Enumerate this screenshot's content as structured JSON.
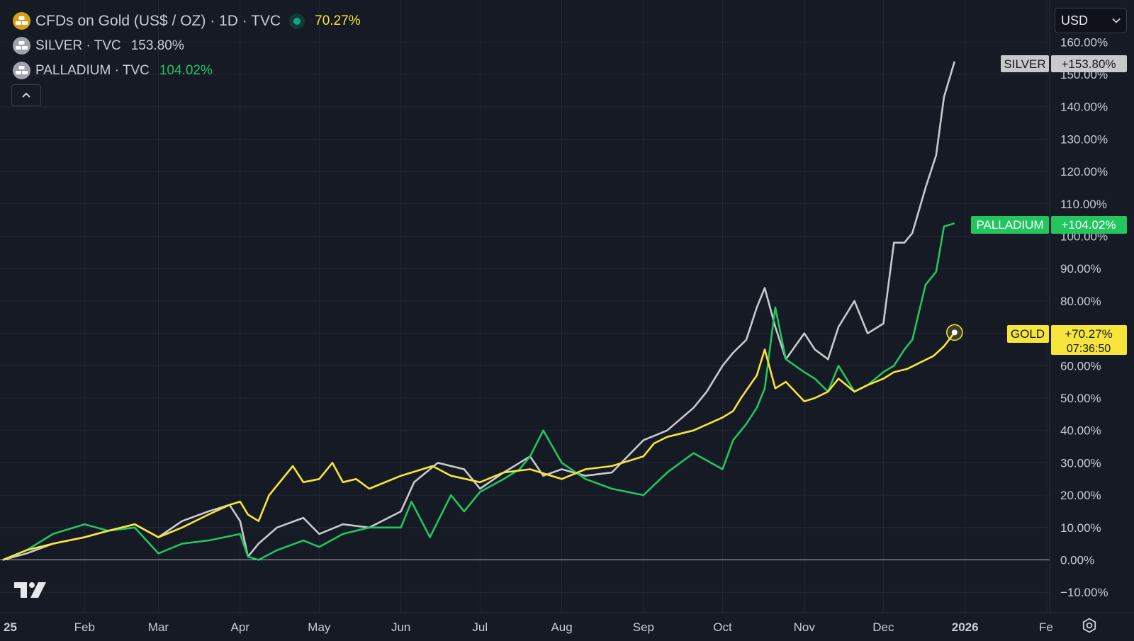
{
  "legend": {
    "main": {
      "title": "CFDs on Gold (US$ / OZ) · 1D · TVC",
      "value": "70.27%",
      "icon": "gold-bars-icon"
    },
    "series2": {
      "title": "SILVER · TVC",
      "value": "153.80%",
      "icon": "silver-bars-icon"
    },
    "series3": {
      "title": "PALLADIUM · TVC",
      "value": "104.02%",
      "icon": "palladium-bars-icon"
    },
    "collapse_icon": "chevron-up-icon"
  },
  "currency_select": {
    "value": "USD",
    "icon": "chevron-down-icon"
  },
  "colors": {
    "background": "#161a25",
    "grid": "#232735",
    "gold": "#f7e53b",
    "silver": "#c8c9cd",
    "palladium": "#22c55e",
    "axis_text": "#c9ccd3"
  },
  "price_labels": {
    "silver": {
      "name": "SILVER",
      "value": "+153.80%"
    },
    "palladium": {
      "name": "PALLADIUM",
      "value": "+104.02%"
    },
    "gold": {
      "name": "GOLD",
      "value": "+70.27%",
      "countdown": "07:36:50"
    }
  },
  "chart_data": {
    "type": "line",
    "y_unit": "percent change",
    "ylim": [
      -13,
      163
    ],
    "y_ticks": [
      -10,
      0,
      10,
      20,
      30,
      40,
      50,
      60,
      70,
      80,
      90,
      100,
      110,
      120,
      130,
      140,
      150,
      160
    ],
    "y_tick_labels": [
      "−10.00%",
      "0.00%",
      "10.00%",
      "20.00%",
      "30.00%",
      "40.00%",
      "50.00%",
      "60.00%",
      "70.00%",
      "80.00%",
      "90.00%",
      "100.00%",
      "110.00%",
      "120.00%",
      "130.00%",
      "140.00%",
      "150.00%",
      "160.00%"
    ],
    "x_tick_labels": [
      "25",
      "Feb",
      "Mar",
      "Apr",
      "May",
      "Jun",
      "Jul",
      "Aug",
      "Sep",
      "Oct",
      "Nov",
      "Dec",
      "2026",
      "Fe"
    ],
    "x_tick_bold": [
      true,
      false,
      false,
      false,
      false,
      false,
      false,
      false,
      false,
      false,
      false,
      false,
      true,
      false
    ],
    "x_tick_dates": [
      "2025-01-01",
      "2025-02-01",
      "2025-03-01",
      "2025-04-01",
      "2025-05-01",
      "2025-06-01",
      "2025-07-01",
      "2025-08-01",
      "2025-09-01",
      "2025-10-01",
      "2025-11-01",
      "2025-12-01",
      "2026-01-01",
      "2026-02-01"
    ],
    "grid": true,
    "series": [
      {
        "name": "SILVER",
        "color": "#c8c9cd",
        "x": [
          "2025-01-01",
          "2025-01-10",
          "2025-01-20",
          "2025-02-01",
          "2025-02-10",
          "2025-02-20",
          "2025-03-01",
          "2025-03-10",
          "2025-03-20",
          "2025-03-28",
          "2025-04-01",
          "2025-04-04",
          "2025-04-08",
          "2025-04-15",
          "2025-04-25",
          "2025-05-01",
          "2025-05-10",
          "2025-05-20",
          "2025-06-01",
          "2025-06-06",
          "2025-06-15",
          "2025-06-25",
          "2025-07-01",
          "2025-07-10",
          "2025-07-20",
          "2025-07-25",
          "2025-08-01",
          "2025-08-10",
          "2025-08-20",
          "2025-09-01",
          "2025-09-10",
          "2025-09-20",
          "2025-09-25",
          "2025-10-01",
          "2025-10-05",
          "2025-10-10",
          "2025-10-14",
          "2025-10-17",
          "2025-10-21",
          "2025-10-25",
          "2025-11-01",
          "2025-11-05",
          "2025-11-10",
          "2025-11-14",
          "2025-11-20",
          "2025-11-25",
          "2025-12-01",
          "2025-12-05",
          "2025-12-09",
          "2025-12-12",
          "2025-12-17",
          "2025-12-21",
          "2025-12-24",
          "2025-12-28"
        ],
        "values": [
          0,
          2,
          5,
          7,
          9,
          11,
          7,
          12,
          15,
          17,
          12,
          1,
          5,
          10,
          13,
          8,
          11,
          10,
          15,
          24,
          30,
          28,
          22,
          27,
          32,
          26,
          28,
          26,
          27,
          37,
          40,
          47,
          52,
          60,
          64,
          68,
          78,
          84,
          72,
          62,
          70,
          65,
          62,
          72,
          80,
          70,
          73,
          98,
          98,
          101,
          115,
          125,
          143,
          154
        ]
      },
      {
        "name": "PALLADIUM",
        "color": "#22c55e",
        "x": [
          "2025-01-01",
          "2025-01-10",
          "2025-01-20",
          "2025-02-01",
          "2025-02-10",
          "2025-02-20",
          "2025-03-01",
          "2025-03-10",
          "2025-03-20",
          "2025-04-01",
          "2025-04-04",
          "2025-04-08",
          "2025-04-15",
          "2025-04-25",
          "2025-05-01",
          "2025-05-10",
          "2025-05-20",
          "2025-06-01",
          "2025-06-05",
          "2025-06-12",
          "2025-06-20",
          "2025-06-25",
          "2025-07-01",
          "2025-07-10",
          "2025-07-16",
          "2025-07-20",
          "2025-07-25",
          "2025-08-01",
          "2025-08-10",
          "2025-08-20",
          "2025-09-01",
          "2025-09-10",
          "2025-09-20",
          "2025-10-01",
          "2025-10-05",
          "2025-10-10",
          "2025-10-14",
          "2025-10-17",
          "2025-10-21",
          "2025-10-25",
          "2025-11-01",
          "2025-11-05",
          "2025-11-10",
          "2025-11-14",
          "2025-11-20",
          "2025-11-25",
          "2025-12-01",
          "2025-12-05",
          "2025-12-09",
          "2025-12-12",
          "2025-12-17",
          "2025-12-21",
          "2025-12-24",
          "2025-12-28"
        ],
        "values": [
          0,
          3,
          8,
          11,
          9,
          10,
          2,
          5,
          6,
          8,
          1,
          0,
          3,
          6,
          4,
          8,
          10,
          10,
          18,
          7,
          20,
          15,
          21,
          25,
          28,
          32,
          40,
          30,
          25,
          22,
          20,
          27,
          33,
          28,
          37,
          42,
          47,
          53,
          78,
          62,
          58,
          56,
          52,
          60,
          52,
          54,
          58,
          60,
          65,
          68,
          85,
          89,
          103,
          104
        ]
      },
      {
        "name": "GOLD",
        "color": "#f7e53b",
        "x": [
          "2025-01-01",
          "2025-01-10",
          "2025-01-20",
          "2025-02-01",
          "2025-02-10",
          "2025-02-20",
          "2025-03-01",
          "2025-03-10",
          "2025-03-20",
          "2025-03-28",
          "2025-04-01",
          "2025-04-04",
          "2025-04-08",
          "2025-04-12",
          "2025-04-21",
          "2025-04-25",
          "2025-05-01",
          "2025-05-06",
          "2025-05-10",
          "2025-05-15",
          "2025-05-20",
          "2025-06-01",
          "2025-06-13",
          "2025-06-20",
          "2025-07-01",
          "2025-07-10",
          "2025-07-20",
          "2025-08-01",
          "2025-08-10",
          "2025-08-20",
          "2025-09-01",
          "2025-09-05",
          "2025-09-10",
          "2025-09-20",
          "2025-10-01",
          "2025-10-05",
          "2025-10-08",
          "2025-10-14",
          "2025-10-17",
          "2025-10-21",
          "2025-10-25",
          "2025-11-01",
          "2025-11-05",
          "2025-11-10",
          "2025-11-14",
          "2025-11-20",
          "2025-11-25",
          "2025-12-01",
          "2025-12-05",
          "2025-12-10",
          "2025-12-15",
          "2025-12-20",
          "2025-12-24",
          "2025-12-28"
        ],
        "values": [
          0,
          3,
          5,
          7,
          9,
          11,
          7,
          10,
          14,
          17,
          18,
          14,
          12,
          20,
          29,
          24,
          25,
          30,
          24,
          25,
          22,
          26,
          29,
          26,
          24,
          27,
          28,
          25,
          28,
          29,
          32,
          36,
          38,
          40,
          44,
          46,
          50,
          57,
          65,
          53,
          55,
          49,
          50,
          52,
          56,
          52,
          54,
          56,
          58,
          59,
          61,
          63,
          66,
          70.27
        ]
      }
    ]
  },
  "footer": {
    "settings_icon": "settings-icon",
    "logo": "tradingview-logo"
  }
}
